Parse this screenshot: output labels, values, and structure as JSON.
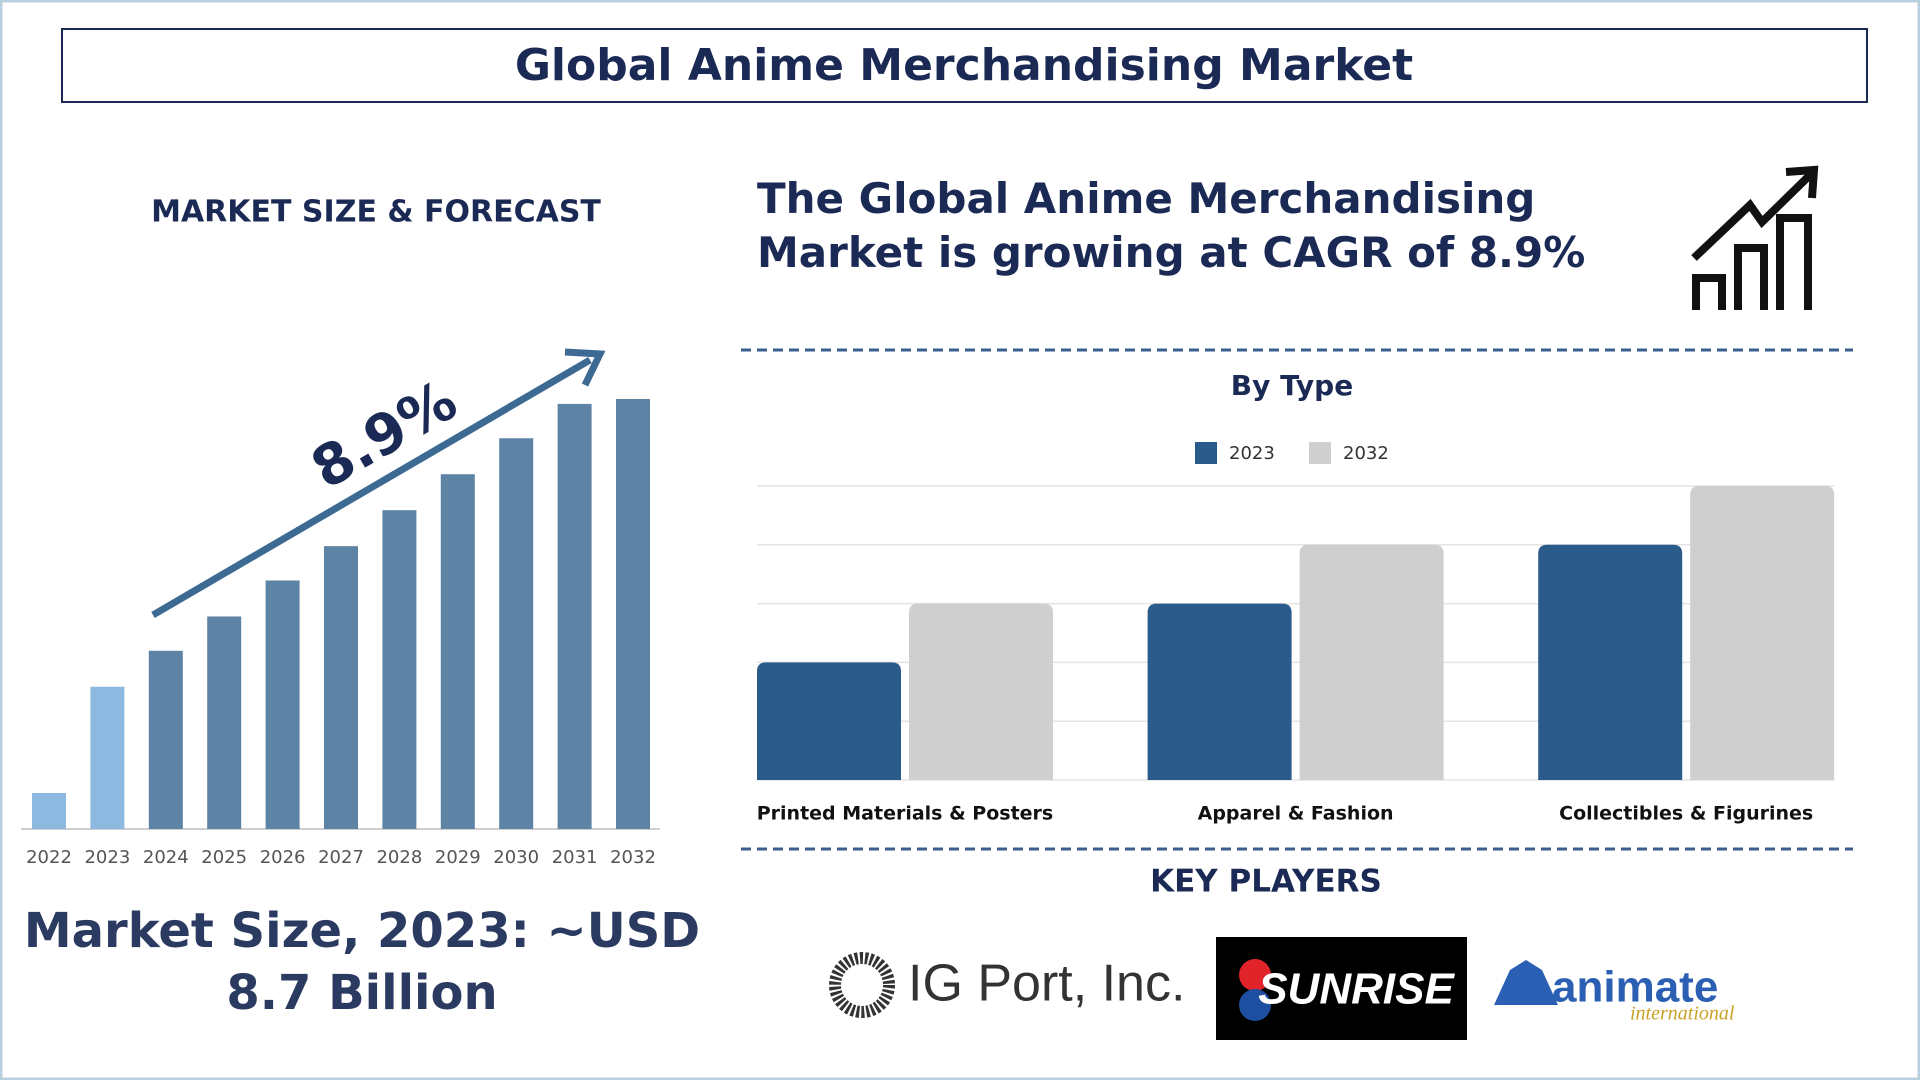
{
  "title": "Global Anime Merchandising Market",
  "chart_data": [
    {
      "type": "bar",
      "title": "MARKET SIZE & FORECAST",
      "annotation": "8.9%",
      "categories": [
        "2022",
        "2023",
        "2024",
        "2025",
        "2026",
        "2027",
        "2028",
        "2029",
        "2030",
        "2031",
        "2032"
      ],
      "values": [
        2.2,
        8.7,
        10.9,
        13.0,
        15.2,
        17.3,
        19.5,
        21.7,
        23.9,
        26.0,
        26.3
      ],
      "colors": [
        "#8db8e0",
        "#8db8e0",
        "#5e84a5",
        "#5e84a5",
        "#5e84a5",
        "#5e84a5",
        "#5e84a5",
        "#5e84a5",
        "#5e84a5",
        "#5e84a5",
        "#5e84a5"
      ]
    },
    {
      "type": "grouped-bar",
      "title": "By Type",
      "categories": [
        "Printed Materials & Posters",
        "Apparel & Fashion",
        "Collectibles & Figurines"
      ],
      "series": [
        {
          "name": "2023",
          "color": "#2a5b8a",
          "values": [
            2,
            3,
            4
          ]
        },
        {
          "name": "2032",
          "color": "#cfcfcf",
          "values": [
            3,
            4,
            5
          ]
        }
      ],
      "ylim": [
        0,
        5
      ],
      "yticks": [
        0,
        1,
        2,
        3,
        4,
        5
      ],
      "grid": true
    }
  ],
  "headline": "The Global Anime Merchandising Market is growing at CAGR of 8.9%",
  "market_size": "Market Size, 2023: ~USD 8.7 Billion",
  "key_players": {
    "title": "KEY PLAYERS",
    "logos": [
      "IG Port, Inc.",
      "SUNRISE",
      "animate",
      "international"
    ]
  }
}
